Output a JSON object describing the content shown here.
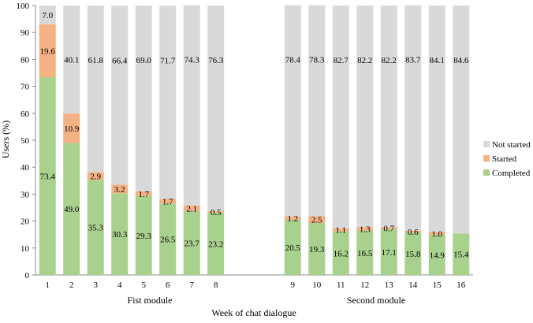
{
  "chart_data": {
    "type": "bar",
    "stacked": true,
    "xlabel": "Week of chat dialogue",
    "ylabel": "Users (%)",
    "ylim": [
      0,
      100
    ],
    "yticks": [
      "0",
      "10",
      "20",
      "30",
      "40",
      "50",
      "60",
      "70",
      "80",
      "90",
      "100"
    ],
    "grid": false,
    "legend_position": "right",
    "groups": [
      {
        "label": "Fist module",
        "categories": [
          "1",
          "2",
          "3",
          "4",
          "5",
          "6",
          "7",
          "8"
        ]
      },
      {
        "label": "Second module",
        "categories": [
          "9",
          "10",
          "11",
          "12",
          "13",
          "14",
          "15",
          "16"
        ]
      }
    ],
    "categories": [
      "1",
      "2",
      "3",
      "4",
      "5",
      "6",
      "7",
      "8",
      "9",
      "10",
      "11",
      "12",
      "13",
      "14",
      "15",
      "16"
    ],
    "series": [
      {
        "name": "Completed",
        "color": "#a9d18e",
        "values": [
          73.4,
          49.0,
          35.3,
          30.3,
          29.3,
          26.5,
          23.7,
          23.2,
          20.5,
          19.3,
          16.2,
          16.5,
          17.1,
          15.8,
          14.9,
          15.4
        ],
        "labels": [
          "73.4",
          "49.0",
          "35.3",
          "30.3",
          "29.3",
          "26.5",
          "23.7",
          "23.2",
          "20.5",
          "19.3",
          "16.2",
          "16.5",
          "17.1",
          "15.8",
          "14.9",
          "15.4"
        ]
      },
      {
        "name": "Started",
        "color": "#f4b183",
        "values": [
          19.6,
          10.9,
          2.9,
          3.2,
          1.7,
          1.7,
          2.1,
          0.5,
          1.2,
          2.5,
          1.1,
          1.3,
          0.7,
          0.6,
          1.0,
          0
        ],
        "labels": [
          "19.6",
          "10.9",
          "2.9",
          "3.2",
          "1.7",
          "1.7",
          "2.1",
          "0.5",
          "1.2",
          "2.5",
          "1.1",
          "1.3",
          "0.7",
          "0.6",
          "1.0",
          ""
        ]
      },
      {
        "name": "Not started",
        "color": "#d9d9d9",
        "values": [
          7.0,
          40.1,
          61.8,
          66.4,
          69.0,
          71.7,
          74.3,
          76.3,
          78.4,
          78.3,
          82.7,
          82.2,
          82.2,
          83.7,
          84.1,
          84.6
        ],
        "labels": [
          "7.0",
          "40.1",
          "61.8",
          "66.4",
          "69.0",
          "71.7",
          "74.3",
          "76.3",
          "78.4",
          "78.3",
          "82.7",
          "82.2",
          "82.2",
          "83.7",
          "84.1",
          "84.6"
        ]
      }
    ],
    "legend_order": [
      "Not started",
      "Started",
      "Completed"
    ]
  }
}
